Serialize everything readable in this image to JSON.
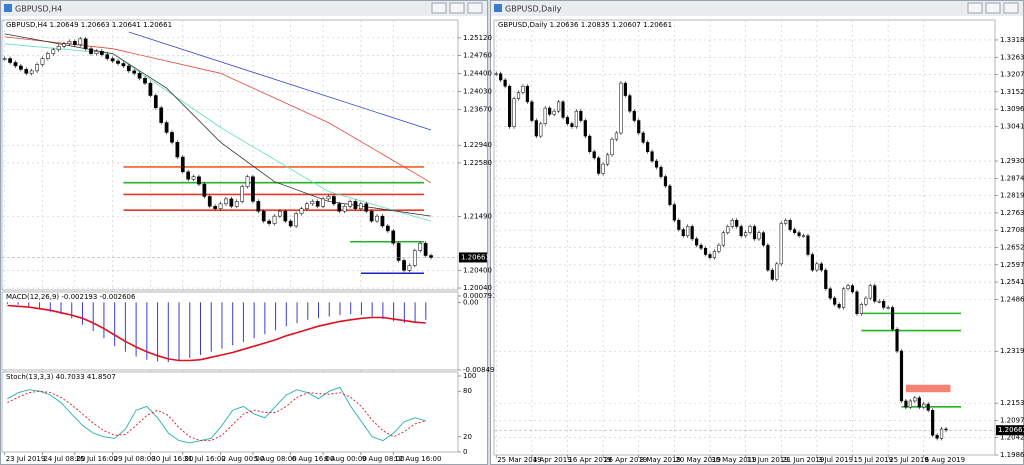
{
  "windows": [
    "GBPUSD,H4",
    "GBPUSD,Daily"
  ],
  "chart_data": [
    {
      "type": "candlestick",
      "title": "GBPUSD,H4  1.20649 1.20663 1.20641 1.20661",
      "last_price": 1.20661,
      "values": [
        1.247,
        1.2462,
        1.2455,
        1.2448,
        1.244,
        1.2445,
        1.2458,
        1.247,
        1.248,
        1.2488,
        1.2495,
        1.25,
        1.2505,
        1.2498,
        1.251,
        1.249,
        1.248,
        1.2485,
        1.2478,
        1.247,
        1.2465,
        1.246,
        1.2455,
        1.2445,
        1.244,
        1.243,
        1.242,
        1.2395,
        1.237,
        1.234,
        1.232,
        1.23,
        1.227,
        1.224,
        1.2225,
        1.223,
        1.2215,
        1.219,
        1.217,
        1.2165,
        1.2175,
        1.2185,
        1.217,
        1.218,
        1.221,
        1.223,
        1.218,
        1.216,
        1.214,
        1.2135,
        1.215,
        1.216,
        1.214,
        1.213,
        1.2155,
        1.2165,
        1.2175,
        1.218,
        1.217,
        1.2185,
        1.219,
        1.2175,
        1.216,
        1.217,
        1.218,
        1.2165,
        1.2175,
        1.216,
        1.214,
        1.215,
        1.213,
        1.212,
        1.2095,
        1.206,
        1.204,
        1.205,
        1.208,
        1.2095,
        1.207,
        1.2066
      ],
      "xlim": [
        -0.5,
        84
      ],
      "ylim": [
        1.2,
        1.2528
      ],
      "yticks": [
        {
          "value": 1.2512,
          "label": "1.25120"
        },
        {
          "value": 1.2476,
          "label": "1.24760"
        },
        {
          "value": 1.244,
          "label": "1.24400"
        },
        {
          "value": 1.2403,
          "label": "1.24030"
        },
        {
          "value": 1.2367,
          "label": "1.23670"
        },
        {
          "value": 1.2294,
          "label": "1.22940"
        },
        {
          "value": 1.2258,
          "label": "1.22580"
        },
        {
          "value": 1.2149,
          "label": "1.21490"
        },
        {
          "value": 1.204,
          "label": "1.20400"
        },
        {
          "value": 1.2004,
          "label": "1.20040"
        }
      ],
      "xticks": [
        {
          "value": 0,
          "label": "23 Jul 2019"
        },
        {
          "value": 7,
          "label": "24 Jul 08:00"
        },
        {
          "value": 13,
          "label": "25 Jul 16:00"
        },
        {
          "value": 20,
          "label": "29 Jul 08:00"
        },
        {
          "value": 27,
          "label": "30 Jul 16:00"
        },
        {
          "value": 33,
          "label": "31 Jul 16:00"
        },
        {
          "value": 40,
          "label": "2 Aug 00:00"
        },
        {
          "value": 46,
          "label": "5 Aug 08:00"
        },
        {
          "value": 53,
          "label": "6 Aug 16:00"
        },
        {
          "value": 59,
          "label": "8 Aug 00:00"
        },
        {
          "value": 66,
          "label": "9 Aug 08:00"
        },
        {
          "value": 72,
          "label": "12 Aug 16:00"
        }
      ],
      "lines": [
        {
          "color": "#3346c8",
          "x": [
            23,
            79
          ],
          "values": [
            1.2524,
            1.2325
          ]
        },
        {
          "color": "#e0483a",
          "x": [
            0,
            20,
            40,
            60,
            79
          ],
          "values": [
            1.2514,
            1.249,
            1.244,
            1.234,
            1.2218
          ]
        },
        {
          "color": "#5fe0c0",
          "x": [
            0,
            20,
            40,
            60,
            79
          ],
          "values": [
            1.25,
            1.248,
            1.233,
            1.22,
            1.214
          ]
        },
        {
          "color": "#333333",
          "x": [
            0,
            20,
            30,
            40,
            50,
            60,
            79
          ],
          "values": [
            1.252,
            1.248,
            1.241,
            1.23,
            1.222,
            1.218,
            1.215
          ]
        }
      ],
      "levels": [
        {
          "value": 1.225,
          "from": 22,
          "color": "#f06020"
        },
        {
          "value": 1.2218,
          "from": 22,
          "color": "#22b422"
        },
        {
          "value": 1.2194,
          "from": 22,
          "color": "#e83828"
        },
        {
          "value": 1.2162,
          "from": 22,
          "color": "#e83828"
        },
        {
          "value": 1.2098,
          "from": 64,
          "color": "#22b422"
        },
        {
          "value": 1.2034,
          "from": 66,
          "color": "#2020c0"
        }
      ],
      "grid": true
    },
    {
      "type": "macd",
      "title": "MACD(12,26,9) -0.002193 -0.002606",
      "values": [
        -0.0002,
        -0.0003,
        -0.0005,
        -0.0008,
        -0.0012,
        -0.0015,
        -0.002,
        -0.0028,
        -0.0036,
        -0.0045,
        -0.0055,
        -0.0062,
        -0.0068,
        -0.0072,
        -0.0074,
        -0.0075,
        -0.0073,
        -0.007,
        -0.0066,
        -0.0062,
        -0.0058,
        -0.0054,
        -0.005,
        -0.0045,
        -0.004,
        -0.0035,
        -0.003,
        -0.0026,
        -0.0022,
        -0.002,
        -0.0018,
        -0.0016,
        -0.0015,
        -0.0016,
        -0.0018,
        -0.0021,
        -0.0024,
        -0.0026,
        -0.0026,
        -0.0022
      ],
      "signal": [
        -0.0004,
        -0.0005,
        -0.0006,
        -0.0008,
        -0.001,
        -0.0013,
        -0.0016,
        -0.002,
        -0.0026,
        -0.0033,
        -0.0041,
        -0.0049,
        -0.0056,
        -0.0062,
        -0.0067,
        -0.0071,
        -0.0073,
        -0.0073,
        -0.0072,
        -0.0069,
        -0.0066,
        -0.0063,
        -0.0059,
        -0.0055,
        -0.0051,
        -0.0047,
        -0.0042,
        -0.0038,
        -0.0034,
        -0.003,
        -0.0027,
        -0.0024,
        -0.0022,
        -0.002,
        -0.0019,
        -0.0019,
        -0.0021,
        -0.0023,
        -0.0025,
        -0.0026
      ],
      "color": "#3a3ad6",
      "signal_color": "#e01020",
      "xlim": [
        -0.5,
        42
      ],
      "ylim": [
        -0.00849,
        0.000791
      ],
      "yticks": [
        0.000791,
        {
          "value": 0,
          "label": "0.00"
        },
        -0.00849
      ]
    },
    {
      "type": "oscillator",
      "title": "Stoch(13,3,3) 40.7033 41.8507",
      "series": [
        {
          "color": "#20b2aa",
          "values": [
            70,
            78,
            82,
            80,
            75,
            65,
            50,
            35,
            25,
            20,
            18,
            30,
            55,
            60,
            45,
            25,
            15,
            12,
            15,
            18,
            35,
            55,
            60,
            50,
            45,
            60,
            75,
            82,
            78,
            70,
            80,
            85,
            60,
            40,
            20,
            15,
            25,
            40,
            45,
            41
          ]
        },
        {
          "color": "#e01020",
          "dashed": true,
          "values": [
            65,
            72,
            78,
            80,
            78,
            72,
            62,
            50,
            38,
            28,
            22,
            23,
            35,
            48,
            55,
            48,
            32,
            20,
            15,
            15,
            22,
            36,
            50,
            55,
            52,
            52,
            60,
            72,
            78,
            77,
            76,
            78,
            72,
            60,
            42,
            28,
            20,
            27,
            37,
            41
          ]
        }
      ],
      "xlim": [
        -0.5,
        42
      ],
      "ylim": [
        0,
        100
      ],
      "yticks": [
        100,
        80,
        20,
        0
      ]
    },
    {
      "type": "candlestick",
      "title": "GBPUSD,Daily  1.20636 1.20835 1.20607 1.20661",
      "last_price": 1.20661,
      "values": [
        1.321,
        1.319,
        1.317,
        1.304,
        1.313,
        1.315,
        1.317,
        1.312,
        1.306,
        1.301,
        1.305,
        1.31,
        1.308,
        1.309,
        1.312,
        1.307,
        1.305,
        1.304,
        1.309,
        1.306,
        1.301,
        1.296,
        1.294,
        1.289,
        1.292,
        1.295,
        1.3,
        1.302,
        1.318,
        1.314,
        1.309,
        1.306,
        1.302,
        1.299,
        1.296,
        1.293,
        1.291,
        1.288,
        1.285,
        1.279,
        1.274,
        1.271,
        1.269,
        1.272,
        1.268,
        1.266,
        1.265,
        1.263,
        1.262,
        1.264,
        1.266,
        1.27,
        1.272,
        1.274,
        1.272,
        1.269,
        1.27,
        1.272,
        1.268,
        1.27,
        1.266,
        1.258,
        1.255,
        1.26,
        1.273,
        1.274,
        1.271,
        1.27,
        1.269,
        1.269,
        1.263,
        1.258,
        1.26,
        1.258,
        1.252,
        1.249,
        1.247,
        1.246,
        1.252,
        1.253,
        1.251,
        1.244,
        1.247,
        1.249,
        1.253,
        1.248,
        1.248,
        1.246,
        1.246,
        1.239,
        1.232,
        1.216,
        1.214,
        1.216,
        1.217,
        1.214,
        1.215,
        1.213,
        1.205,
        1.204,
        1.207,
        1.2066
      ],
      "xlim": [
        -0.5,
        112
      ],
      "ylim": [
        1.19865,
        1.33505
      ],
      "yticks": [
        1.33185,
        {
          "value": 1.3263,
          "label": "1.32630"
        },
        1.32075,
        {
          "value": 1.3152,
          "label": "1.31520"
        },
        1.30965,
        {
          "value": 1.3041,
          "label": "1.30410"
        },
        {
          "value": 1.293,
          "label": "1.29300"
        },
        1.28745,
        {
          "value": 1.2819,
          "label": "1.28190"
        },
        1.27635,
        {
          "value": 1.2708,
          "label": "1.27080"
        },
        1.26525,
        {
          "value": 1.2597,
          "label": "1.25970"
        },
        1.25415,
        {
          "value": 1.2486,
          "label": "1.24860"
        },
        1.23195,
        {
          "value": 1.2153,
          "label": "1.21530"
        },
        1.20975,
        {
          "value": 1.2042,
          "label": "1.20420"
        },
        1.19865
      ],
      "xticks": [
        {
          "value": 0,
          "label": "25 Mar 2019"
        },
        {
          "value": 8,
          "label": "4 Apr 2019"
        },
        {
          "value": 16,
          "label": "16 Apr 2019"
        },
        {
          "value": 24,
          "label": "26 Apr 2019"
        },
        {
          "value": 32,
          "label": "8 May 2019"
        },
        {
          "value": 40,
          "label": "20 May 2019"
        },
        {
          "value": 48,
          "label": "30 May 2019"
        },
        {
          "value": 56,
          "label": "11 Jun 2019"
        },
        {
          "value": 64,
          "label": "21 Jun 2019"
        },
        {
          "value": 72,
          "label": "3 Jul 2019"
        },
        {
          "value": 80,
          "label": "15 Jul 2019"
        },
        {
          "value": 88,
          "label": "25 Jul 2019"
        },
        {
          "value": 96,
          "label": "6 Aug 2019"
        }
      ],
      "levels": [
        {
          "value": 1.2441,
          "from": 82,
          "color": "#22b422"
        },
        {
          "value": 1.2386,
          "from": 82,
          "color": "#22b422"
        },
        {
          "value": 1.2141,
          "from": 91,
          "color": "#22b422"
        }
      ],
      "boxes": [
        {
          "low": 1.2188,
          "high": 1.2212,
          "from": 92,
          "to": 101,
          "color": "#f26d5b"
        }
      ],
      "grid": true
    }
  ]
}
